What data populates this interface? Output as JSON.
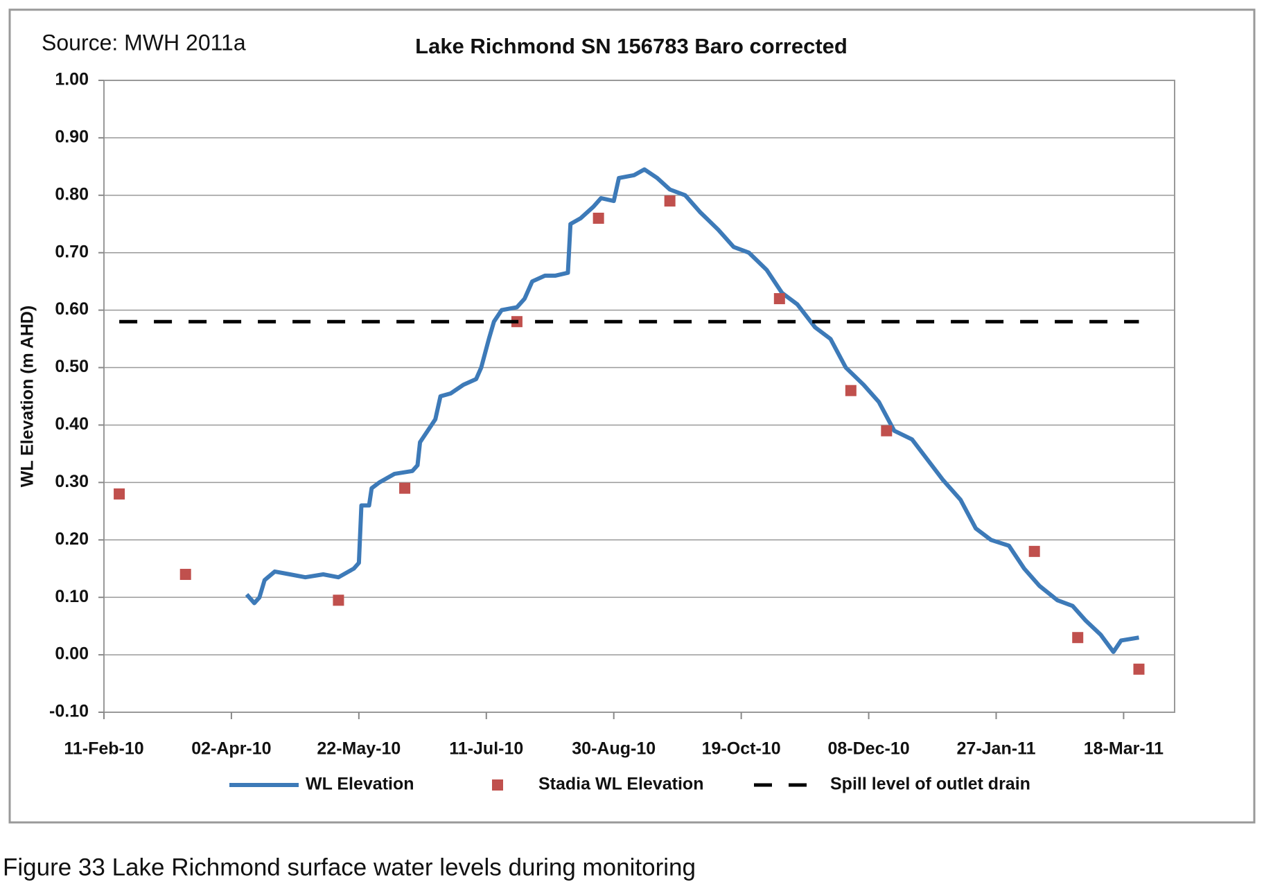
{
  "chart_data": {
    "type": "line",
    "title": "Lake Richmond SN 156783 Baro corrected",
    "source": "Source: MWH 2011a",
    "caption": "Figure 33  Lake Richmond surface water levels during monitoring",
    "y_label": "WL Elevation (m AHD)",
    "xlim": [
      "2010-02-11",
      "2011-04-07"
    ],
    "xticks": [
      {
        "value": "2010-02-11",
        "label": "11-Feb-10"
      },
      {
        "value": "2010-04-02",
        "label": "02-Apr-10"
      },
      {
        "value": "2010-05-22",
        "label": "22-May-10"
      },
      {
        "value": "2010-07-11",
        "label": "11-Jul-10"
      },
      {
        "value": "2010-08-30",
        "label": "30-Aug-10"
      },
      {
        "value": "2010-10-19",
        "label": "19-Oct-10"
      },
      {
        "value": "2010-12-08",
        "label": "08-Dec-10"
      },
      {
        "value": "2011-01-27",
        "label": "27-Jan-11"
      },
      {
        "value": "2011-03-18",
        "label": "18-Mar-11"
      }
    ],
    "ylim": [
      -0.1,
      1.0
    ],
    "yticks": [
      {
        "value": 1.0,
        "label": "1.00"
      },
      {
        "value": 0.9,
        "label": "0.90"
      },
      {
        "value": 0.8,
        "label": "0.80"
      },
      {
        "value": 0.7,
        "label": "0.70"
      },
      {
        "value": 0.6,
        "label": "0.60"
      },
      {
        "value": 0.5,
        "label": "0.50"
      },
      {
        "value": 0.4,
        "label": "0.40"
      },
      {
        "value": 0.3,
        "label": "0.30"
      },
      {
        "value": 0.2,
        "label": "0.20"
      },
      {
        "value": 0.1,
        "label": "0.10"
      },
      {
        "value": 0.0,
        "label": "0.00"
      },
      {
        "value": -0.1,
        "label": "-0.10"
      }
    ],
    "grid": true,
    "legend": "bottom",
    "series": [
      {
        "name": "WL Elevation",
        "style": "line",
        "color": "#3d7ab8",
        "x": [
          "2010-04-08",
          "2010-04-11",
          "2010-04-13",
          "2010-04-15",
          "2010-04-19",
          "2010-04-25",
          "2010-05-01",
          "2010-05-08",
          "2010-05-14",
          "2010-05-20",
          "2010-05-22",
          "2010-05-23",
          "2010-05-26",
          "2010-05-27",
          "2010-05-30",
          "2010-06-05",
          "2010-06-12",
          "2010-06-14",
          "2010-06-15",
          "2010-06-18",
          "2010-06-21",
          "2010-06-23",
          "2010-06-27",
          "2010-07-02",
          "2010-07-07",
          "2010-07-09",
          "2010-07-12",
          "2010-07-14",
          "2010-07-17",
          "2010-07-23",
          "2010-07-26",
          "2010-07-29",
          "2010-08-03",
          "2010-08-07",
          "2010-08-12",
          "2010-08-13",
          "2010-08-17",
          "2010-08-22",
          "2010-08-25",
          "2010-08-30",
          "2010-09-01",
          "2010-09-07",
          "2010-09-11",
          "2010-09-16",
          "2010-09-21",
          "2010-09-27",
          "2010-10-03",
          "2010-10-10",
          "2010-10-16",
          "2010-10-22",
          "2010-10-29",
          "2010-11-04",
          "2010-11-10",
          "2010-11-17",
          "2010-11-23",
          "2010-11-29",
          "2010-12-06",
          "2010-12-12",
          "2010-12-18",
          "2010-12-25",
          "2010-12-31",
          "2011-01-06",
          "2011-01-13",
          "2011-01-19",
          "2011-01-25",
          "2011-02-01",
          "2011-02-07",
          "2011-02-13",
          "2011-02-20",
          "2011-02-26",
          "2011-03-03",
          "2011-03-09",
          "2011-03-14",
          "2011-03-17",
          "2011-03-24"
        ],
        "values": [
          0.105,
          0.09,
          0.1,
          0.13,
          0.145,
          0.14,
          0.135,
          0.14,
          0.135,
          0.15,
          0.16,
          0.26,
          0.26,
          0.29,
          0.3,
          0.315,
          0.32,
          0.33,
          0.37,
          0.39,
          0.41,
          0.45,
          0.455,
          0.47,
          0.48,
          0.5,
          0.55,
          0.58,
          0.6,
          0.605,
          0.62,
          0.65,
          0.66,
          0.66,
          0.665,
          0.75,
          0.76,
          0.78,
          0.795,
          0.79,
          0.83,
          0.835,
          0.845,
          0.83,
          0.81,
          0.8,
          0.77,
          0.74,
          0.71,
          0.7,
          0.67,
          0.63,
          0.61,
          0.57,
          0.55,
          0.5,
          0.47,
          0.44,
          0.39,
          0.375,
          0.34,
          0.305,
          0.27,
          0.22,
          0.2,
          0.19,
          0.15,
          0.12,
          0.095,
          0.085,
          0.06,
          0.035,
          0.005,
          0.025,
          0.03
        ]
      },
      {
        "name": "Stadia WL Elevation",
        "style": "marker",
        "color": "#c0504d",
        "x": [
          "2010-02-17",
          "2010-03-15",
          "2010-05-14",
          "2010-06-09",
          "2010-07-23",
          "2010-08-24",
          "2010-09-21",
          "2010-11-03",
          "2010-12-01",
          "2010-12-15",
          "2011-02-11",
          "2011-02-28",
          "2011-03-24"
        ],
        "values": [
          0.28,
          0.14,
          0.095,
          0.29,
          0.58,
          0.76,
          0.79,
          0.62,
          0.46,
          0.39,
          0.18,
          0.03,
          -0.025
        ]
      },
      {
        "name": "Spill level of outlet drain",
        "style": "dashed",
        "color": "#000000",
        "x": [
          "2010-02-17",
          "2011-03-24"
        ],
        "values": [
          0.58,
          0.58
        ]
      }
    ]
  }
}
